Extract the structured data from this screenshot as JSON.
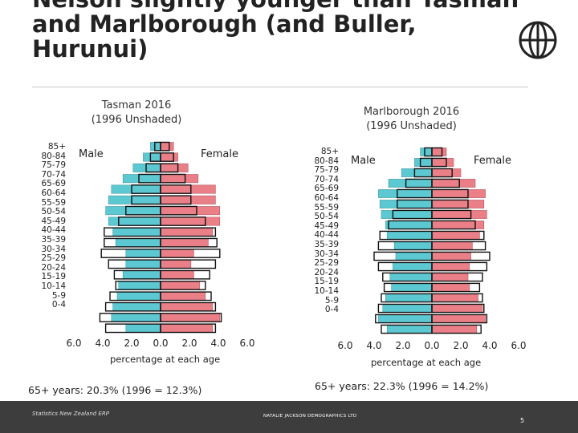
{
  "title": {
    "lines": [
      "Nelson slightly younger than Tasman",
      "and Marlborough (and Buller,",
      "Hurunui)"
    ]
  },
  "icons": {
    "globe": "globe-icon"
  },
  "colors": {
    "male": "#5bc8d2",
    "female": "#ea7f88",
    "unshaded": "#ffffff",
    "outline": "#111111",
    "footer": "#3d3d3d"
  },
  "chart_data": [
    {
      "type": "bar",
      "orientation": "population-pyramid",
      "title": "Tasman 2016",
      "subtitle": "(1996 Unshaded)",
      "categories": [
        "85+",
        "80-84",
        "75-79",
        "70-74",
        "65-69",
        "60-64",
        "55-59",
        "50-54",
        "45-49",
        "40-44",
        "35-39",
        "30-34",
        "25-29",
        "20-24",
        "15-19",
        "10-14",
        "5-9",
        "0-4"
      ],
      "series": [
        {
          "name": "Male 2016",
          "values": [
            0.7,
            1.2,
            1.9,
            2.6,
            3.4,
            3.6,
            3.8,
            3.6,
            3.3,
            3.1,
            2.4,
            2.4,
            2.6,
            2.9,
            3.0,
            3.3,
            3.4,
            2.4
          ]
        },
        {
          "name": "Female 2016",
          "values": [
            0.9,
            1.2,
            1.9,
            2.6,
            3.8,
            3.8,
            4.1,
            4.1,
            3.6,
            3.3,
            2.3,
            2.1,
            2.3,
            2.7,
            3.1,
            3.6,
            4.1,
            3.6
          ]
        },
        {
          "name": "Male 1996",
          "values": [
            0.4,
            0.7,
            1.0,
            1.5,
            2.0,
            2.0,
            2.4,
            2.9,
            3.9,
            3.9,
            4.1,
            3.6,
            3.2,
            3.1,
            3.5,
            3.8,
            4.2,
            3.8
          ]
        },
        {
          "name": "Female 1996",
          "values": [
            0.6,
            0.9,
            1.2,
            1.7,
            2.1,
            2.1,
            2.5,
            3.1,
            3.8,
            3.9,
            4.1,
            3.8,
            3.4,
            3.1,
            3.5,
            3.8,
            4.2,
            3.8
          ]
        }
      ],
      "male_label": "Male",
      "female_label": "Female",
      "xticks": [
        "6.0",
        "4.0",
        "2.0",
        "0.0",
        "2.0",
        "4.0",
        "6.0"
      ],
      "xlabel": "percentage at each age",
      "xlim": [
        -6,
        6
      ],
      "summary": "65+ years: 20.3% (1996 = 12.3%)"
    },
    {
      "type": "bar",
      "orientation": "population-pyramid",
      "title": "Marlborough 2016",
      "subtitle": "(1996 Unshaded)",
      "categories": [
        "85+",
        "80-84",
        "75-79",
        "70-74",
        "65-69",
        "60-64",
        "55-59",
        "50-54",
        "45-49",
        "40-44",
        "35-39",
        "30-34",
        "25-29",
        "20-24",
        "15-19",
        "10-14",
        "5-9",
        "0-4"
      ],
      "series": [
        {
          "name": "Male 2016",
          "values": [
            0.8,
            1.2,
            2.1,
            3.0,
            3.7,
            3.6,
            3.5,
            3.2,
            3.1,
            2.6,
            2.5,
            2.7,
            2.9,
            2.8,
            3.2,
            3.4,
            3.7,
            3.1
          ]
        },
        {
          "name": "Female 2016",
          "values": [
            1.0,
            1.5,
            2.0,
            3.0,
            3.7,
            3.6,
            3.8,
            3.6,
            3.3,
            2.8,
            2.7,
            2.6,
            2.5,
            2.6,
            3.2,
            3.5,
            3.7,
            3.1
          ]
        },
        {
          "name": "Male 1996",
          "values": [
            0.5,
            0.8,
            1.2,
            1.8,
            2.4,
            2.4,
            2.7,
            3.0,
            3.6,
            3.7,
            4.0,
            3.7,
            3.4,
            3.3,
            3.5,
            3.7,
            3.9,
            3.5
          ]
        },
        {
          "name": "Female 1996",
          "values": [
            0.7,
            1.0,
            1.4,
            1.9,
            2.5,
            2.5,
            2.7,
            3.0,
            3.6,
            3.7,
            4.0,
            3.8,
            3.5,
            3.3,
            3.5,
            3.6,
            3.8,
            3.4
          ]
        }
      ],
      "male_label": "Male",
      "female_label": "Female",
      "xticks": [
        "6.0",
        "4.0",
        "2.0",
        "0.0",
        "2.0",
        "4.0",
        "6.0"
      ],
      "xlabel": "percentage at each age",
      "xlim": [
        -6,
        6
      ],
      "summary": "65+ years: 22.3% (1996 = 14.2%)"
    }
  ],
  "footer": {
    "source": "Statistics New Zealand ERP",
    "author": "NATALIE JACKSON DEMOGRAPHICS LTD",
    "page": "5"
  }
}
